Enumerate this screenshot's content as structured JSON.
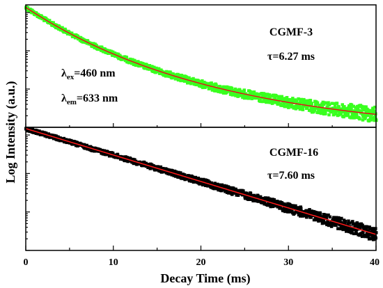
{
  "chart_data": {
    "type": "scatter",
    "xlabel": "Decay Time (ms)",
    "ylabel": "Log Intensity (a.u.)",
    "xlim": [
      0,
      40
    ],
    "x_ticks": [
      "0",
      "10",
      "20",
      "30",
      "40"
    ],
    "yscale": "log",
    "grid": false,
    "legend": "none",
    "panels": [
      {
        "sample": "CGMF-3",
        "lifetime": "τ=6.27 ms",
        "data_color": "#39ff1f",
        "fit_color": "#e3101b",
        "trend": "concave-decay",
        "y_ticks_labeled": false
      },
      {
        "sample": "CGMF-16",
        "lifetime": "τ=7.60 ms",
        "data_color": "#000000",
        "fit_color": "#ff1a1a",
        "trend": "linear-decay",
        "y_ticks_labeled": false
      }
    ],
    "annotations": {
      "excitation": {
        "symbol": "λ",
        "sub": "ex",
        "value": "=460 nm"
      },
      "emission": {
        "symbol": "λ",
        "sub": "em",
        "value": "=633 nm"
      }
    }
  }
}
